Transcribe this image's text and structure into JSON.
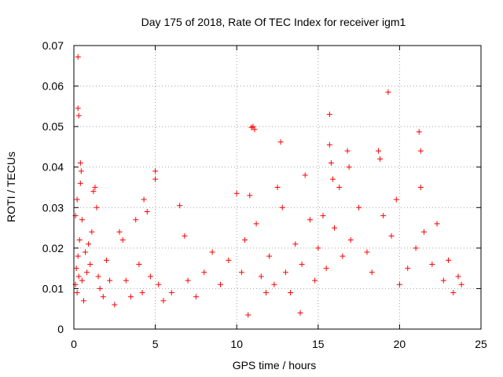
{
  "chart_data": {
    "type": "scatter",
    "title": "Day 175 of 2018, Rate Of TEC Index for receiver igm1",
    "xlabel": "GPS time / hours",
    "ylabel": "ROTI / TECUs",
    "xlim": [
      0,
      25
    ],
    "ylim": [
      0,
      0.07
    ],
    "x_ticks": [
      0,
      5,
      10,
      15,
      20,
      25
    ],
    "x_tick_labels": [
      "0",
      "5",
      "10",
      "15",
      "20",
      "25"
    ],
    "y_ticks": [
      0,
      0.01,
      0.02,
      0.03,
      0.04,
      0.05,
      0.06,
      0.07
    ],
    "y_tick_labels": [
      "0",
      "0.01",
      "0.02",
      "0.03",
      "0.04",
      "0.05",
      "0.06",
      "0.07"
    ],
    "grid": true,
    "marker": "+",
    "color": "#ff0000",
    "series": [
      {
        "name": "ROTI",
        "points": [
          [
            0.1,
            0.011
          ],
          [
            0.1,
            0.028
          ],
          [
            0.15,
            0.015
          ],
          [
            0.2,
            0.009
          ],
          [
            0.2,
            0.032
          ],
          [
            0.25,
            0.018
          ],
          [
            0.25,
            0.0672
          ],
          [
            0.25,
            0.0545
          ],
          [
            0.3,
            0.0527
          ],
          [
            0.3,
            0.013
          ],
          [
            0.35,
            0.022
          ],
          [
            0.4,
            0.036
          ],
          [
            0.4,
            0.041
          ],
          [
            0.45,
            0.039
          ],
          [
            0.5,
            0.027
          ],
          [
            0.5,
            0.012
          ],
          [
            0.6,
            0.007
          ],
          [
            0.7,
            0.019
          ],
          [
            0.8,
            0.014
          ],
          [
            0.9,
            0.021
          ],
          [
            1.0,
            0.016
          ],
          [
            1.1,
            0.024
          ],
          [
            1.2,
            0.034
          ],
          [
            1.3,
            0.035
          ],
          [
            1.4,
            0.03
          ],
          [
            1.5,
            0.013
          ],
          [
            1.6,
            0.01
          ],
          [
            1.8,
            0.008
          ],
          [
            2.0,
            0.017
          ],
          [
            2.2,
            0.012
          ],
          [
            2.5,
            0.006
          ],
          [
            2.8,
            0.024
          ],
          [
            3.0,
            0.022
          ],
          [
            3.2,
            0.012
          ],
          [
            3.5,
            0.008
          ],
          [
            3.8,
            0.027
          ],
          [
            4.0,
            0.016
          ],
          [
            4.2,
            0.009
          ],
          [
            4.3,
            0.032
          ],
          [
            4.5,
            0.029
          ],
          [
            4.7,
            0.013
          ],
          [
            5.0,
            0.039
          ],
          [
            5.0,
            0.037
          ],
          [
            5.2,
            0.011
          ],
          [
            5.5,
            0.007
          ],
          [
            6.0,
            0.009
          ],
          [
            6.5,
            0.0305
          ],
          [
            6.8,
            0.023
          ],
          [
            7.0,
            0.012
          ],
          [
            7.5,
            0.008
          ],
          [
            8.0,
            0.014
          ],
          [
            8.5,
            0.019
          ],
          [
            9.0,
            0.011
          ],
          [
            9.5,
            0.017
          ],
          [
            10.0,
            0.0335
          ],
          [
            10.3,
            0.014
          ],
          [
            10.5,
            0.022
          ],
          [
            10.7,
            0.0035
          ],
          [
            10.8,
            0.033
          ],
          [
            10.9,
            0.0498
          ],
          [
            11.0,
            0.05
          ],
          [
            11.1,
            0.0493
          ],
          [
            11.2,
            0.026
          ],
          [
            11.5,
            0.013
          ],
          [
            11.8,
            0.009
          ],
          [
            12.0,
            0.018
          ],
          [
            12.3,
            0.011
          ],
          [
            12.5,
            0.035
          ],
          [
            12.7,
            0.0462
          ],
          [
            12.8,
            0.03
          ],
          [
            13.0,
            0.014
          ],
          [
            13.3,
            0.009
          ],
          [
            13.6,
            0.021
          ],
          [
            13.9,
            0.004
          ],
          [
            14.0,
            0.016
          ],
          [
            14.2,
            0.038
          ],
          [
            14.5,
            0.027
          ],
          [
            14.8,
            0.012
          ],
          [
            15.0,
            0.02
          ],
          [
            15.3,
            0.028
          ],
          [
            15.5,
            0.015
          ],
          [
            15.7,
            0.053
          ],
          [
            15.7,
            0.0455
          ],
          [
            15.8,
            0.041
          ],
          [
            15.9,
            0.037
          ],
          [
            16.0,
            0.025
          ],
          [
            16.3,
            0.035
          ],
          [
            16.5,
            0.018
          ],
          [
            16.8,
            0.044
          ],
          [
            16.9,
            0.04
          ],
          [
            17.0,
            0.022
          ],
          [
            17.5,
            0.03
          ],
          [
            18.0,
            0.019
          ],
          [
            18.3,
            0.014
          ],
          [
            18.7,
            0.044
          ],
          [
            18.8,
            0.042
          ],
          [
            19.0,
            0.028
          ],
          [
            19.3,
            0.0585
          ],
          [
            19.5,
            0.023
          ],
          [
            19.8,
            0.032
          ],
          [
            20.0,
            0.011
          ],
          [
            20.5,
            0.015
          ],
          [
            21.0,
            0.02
          ],
          [
            21.2,
            0.0487
          ],
          [
            21.3,
            0.044
          ],
          [
            21.3,
            0.035
          ],
          [
            21.5,
            0.024
          ],
          [
            22.0,
            0.016
          ],
          [
            22.3,
            0.026
          ],
          [
            22.7,
            0.012
          ],
          [
            23.0,
            0.017
          ],
          [
            23.3,
            0.009
          ],
          [
            23.6,
            0.013
          ],
          [
            23.8,
            0.011
          ]
        ]
      }
    ]
  }
}
